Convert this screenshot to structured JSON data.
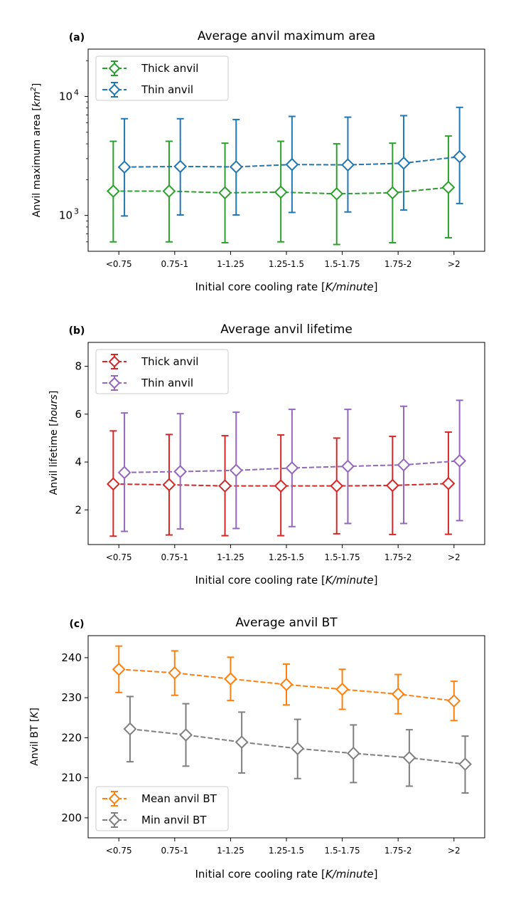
{
  "chart_data": [
    {
      "type": "errorbar-line",
      "panel_label": "(a)",
      "title": "Average anvil maximum area",
      "xlabel": "Initial core cooling rate [K/minute]",
      "ylabel": "Anvil maximum area [km²]",
      "yscale": "log",
      "ylim": [
        500,
        25000
      ],
      "yticks": [
        {
          "value": 1000,
          "base": "10",
          "exp": "3"
        },
        {
          "value": 10000,
          "base": "10",
          "exp": "4"
        }
      ],
      "yminor": [
        600,
        700,
        800,
        900,
        2000,
        3000,
        4000,
        5000,
        6000,
        7000,
        8000,
        9000,
        20000
      ],
      "legend_loc": "upper left",
      "categories": [
        "<0.75",
        "0.75-1",
        "1-1.25",
        "1.25-1.5",
        "1.5-1.75",
        "1.75-2",
        ">2"
      ],
      "series": [
        {
          "name": "Thick anvil",
          "color": "#2ca02c",
          "offset": -0.1,
          "values": [
            1600,
            1600,
            1550,
            1570,
            1520,
            1550,
            1720
          ],
          "lower": [
            600,
            600,
            590,
            600,
            570,
            590,
            650
          ],
          "upper": [
            4200,
            4200,
            4050,
            4200,
            4000,
            4050,
            4650
          ]
        },
        {
          "name": "Thin anvil",
          "color": "#1f77b4",
          "offset": 0.1,
          "values": [
            2550,
            2580,
            2560,
            2680,
            2660,
            2750,
            3120
          ],
          "lower": [
            990,
            1010,
            1010,
            1060,
            1070,
            1110,
            1260
          ],
          "upper": [
            6500,
            6500,
            6400,
            6800,
            6700,
            6900,
            8100
          ]
        }
      ]
    },
    {
      "type": "errorbar-line",
      "panel_label": "(b)",
      "title": "Average anvil lifetime",
      "xlabel": "Initial core cooling rate [K/minute]",
      "ylabel": "Anvil lifetime [hours]",
      "yscale": "linear",
      "ylim": [
        0.55,
        9.0
      ],
      "yticks": [
        {
          "value": 2,
          "label": "2"
        },
        {
          "value": 4,
          "label": "4"
        },
        {
          "value": 6,
          "label": "6"
        },
        {
          "value": 8,
          "label": "8"
        }
      ],
      "legend_loc": "upper left",
      "categories": [
        "<0.75",
        "0.75-1",
        "1-1.25",
        "1.25-1.5",
        "1.5-1.75",
        "1.75-2",
        ">2"
      ],
      "series": [
        {
          "name": "Thick anvil",
          "color": "#d62728",
          "offset": -0.1,
          "values": [
            3.08,
            3.05,
            3.0,
            3.0,
            3.0,
            3.02,
            3.1
          ],
          "lower": [
            0.9,
            0.95,
            0.92,
            0.92,
            1.0,
            0.97,
            0.98
          ],
          "upper": [
            5.3,
            5.15,
            5.1,
            5.13,
            5.0,
            5.07,
            5.25
          ]
        },
        {
          "name": "Thin anvil",
          "color": "#9467bd",
          "offset": 0.1,
          "values": [
            3.56,
            3.6,
            3.65,
            3.75,
            3.82,
            3.88,
            4.05
          ],
          "lower": [
            1.1,
            1.2,
            1.22,
            1.3,
            1.43,
            1.43,
            1.55
          ],
          "upper": [
            6.05,
            6.02,
            6.08,
            6.2,
            6.2,
            6.33,
            6.58
          ]
        }
      ]
    },
    {
      "type": "errorbar-line",
      "panel_label": "(c)",
      "title": "Average anvil BT",
      "xlabel": "Initial core cooling rate [K/minute]",
      "ylabel": "Anvil BT [K]",
      "yscale": "linear",
      "ylim": [
        195,
        245.5
      ],
      "yticks": [
        {
          "value": 200,
          "label": "200"
        },
        {
          "value": 210,
          "label": "210"
        },
        {
          "value": 220,
          "label": "220"
        },
        {
          "value": 230,
          "label": "230"
        },
        {
          "value": 240,
          "label": "240"
        }
      ],
      "legend_loc": "lower left",
      "categories": [
        "<0.75",
        "0.75-1",
        "1-1.25",
        "1.25-1.5",
        "1.5-1.75",
        "1.75-2",
        ">2"
      ],
      "series": [
        {
          "name": "Mean anvil BT",
          "color": "#ff7f0e",
          "offset": 0,
          "values": [
            237.1,
            236.2,
            234.7,
            233.3,
            232.1,
            230.9,
            229.2
          ],
          "lower": [
            231.3,
            230.6,
            229.3,
            228.2,
            227.1,
            226.0,
            224.3
          ],
          "upper": [
            242.9,
            241.7,
            240.1,
            238.4,
            237.1,
            235.8,
            234.1
          ]
        },
        {
          "name": "Min anvil BT",
          "color": "#7f7f7f",
          "offset": 0.2,
          "values": [
            222.2,
            220.7,
            218.9,
            217.3,
            216.1,
            215.0,
            213.4
          ],
          "lower": [
            214.0,
            212.9,
            211.2,
            209.8,
            208.8,
            207.9,
            206.2
          ],
          "upper": [
            230.3,
            228.5,
            226.4,
            224.6,
            223.2,
            222.0,
            220.4
          ]
        }
      ]
    }
  ]
}
